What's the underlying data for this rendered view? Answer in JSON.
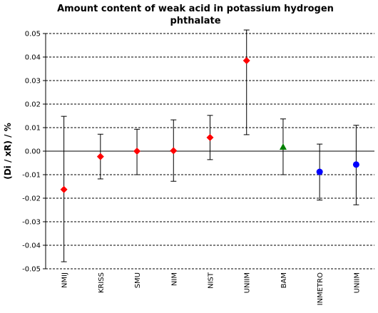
{
  "chart_data": {
    "type": "scatter",
    "title_lines": [
      "Amount content of weak acid in potassium hydrogen",
      "phthalate"
    ],
    "ylabel": "(Di / xR) / %",
    "ylim": [
      -0.05,
      0.05
    ],
    "yticks": [
      0.05,
      0.04,
      0.03,
      0.02,
      0.01,
      0.0,
      -0.01,
      -0.02,
      -0.03,
      -0.04,
      -0.05
    ],
    "ytick_labels": [
      "0.05",
      "0.04",
      "0.03",
      "0.02",
      "0.01",
      "0.00",
      "-0.01",
      "-0.02",
      "-0.03",
      "-0.04",
      "-0.05"
    ],
    "grid": "horizontal dashed",
    "categories": [
      "NMIJ",
      "KRISS",
      "SMU",
      "NIM",
      "NIST",
      "UNIIM",
      "BAM",
      "INMETRO",
      "UNIIM"
    ],
    "values": [
      -0.0163,
      -0.0023,
      0.0,
      0.0002,
      0.0058,
      0.0385,
      0.0018,
      -0.0088,
      -0.0057
    ],
    "err_low": [
      -0.047,
      -0.0118,
      -0.01,
      -0.0128,
      -0.0036,
      0.007,
      -0.01,
      -0.0208,
      -0.0228
    ],
    "err_high": [
      0.0148,
      0.0072,
      0.0093,
      0.0133,
      0.0152,
      0.0515,
      0.0137,
      0.003,
      0.011
    ],
    "markers": [
      "diamond",
      "diamond",
      "diamond",
      "diamond",
      "diamond",
      "diamond",
      "triangle",
      "circle",
      "circle"
    ],
    "colors": [
      "#ff0000",
      "#ff0000",
      "#ff0000",
      "#ff0000",
      "#ff0000",
      "#ff0000",
      "#008000",
      "#0000ff",
      "#0000ff"
    ]
  }
}
